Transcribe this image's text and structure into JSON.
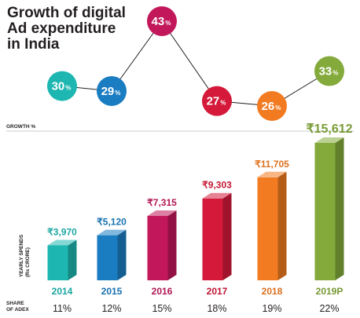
{
  "chart_data": {
    "type": "bar",
    "title_lines": [
      "Growth of digital",
      "Ad expenditure",
      "in India"
    ],
    "growth_label": "GROWTH %",
    "ylabel_lines": [
      "YEARLY SPENDS",
      "(Rs CRORE)"
    ],
    "share_label_lines": [
      "SHARE",
      "OF ADEX"
    ],
    "categories": [
      "2014",
      "2015",
      "2016",
      "2017",
      "2018",
      "2019P"
    ],
    "values": [
      3970,
      5120,
      7315,
      9303,
      11705,
      15612
    ],
    "value_labels": [
      "₹3,970",
      "₹5,120",
      "₹7,315",
      "₹9,303",
      "₹11,705",
      "₹15,612"
    ],
    "growth": [
      30,
      29,
      43,
      27,
      26,
      33
    ],
    "growth_unit": "%",
    "share_of_adex": [
      "11%",
      "12%",
      "15%",
      "18%",
      "19%",
      "22%"
    ],
    "colors": [
      "#1db6b0",
      "#1a7dc2",
      "#c2185b",
      "#d4193a",
      "#f27b21",
      "#83aa3a"
    ]
  }
}
